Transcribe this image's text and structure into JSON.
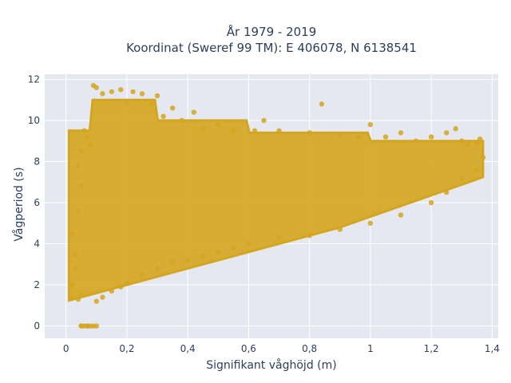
{
  "chart_data": {
    "type": "scatter",
    "title_line1": "År 1979 - 2019",
    "title_line2": "Koordinat (Sweref 99 TM): E 406078, N 6138541",
    "xlabel": "Signifikant våghöjd (m)",
    "ylabel": "Vågperiod (s)",
    "xlim": [
      -0.07,
      1.42
    ],
    "ylim": [
      -0.6,
      12.25
    ],
    "x_ticks": [
      0,
      0.2,
      0.4,
      0.6,
      0.8,
      1.0,
      1.2,
      1.4
    ],
    "x_tick_labels": [
      "0",
      "0,2",
      "0,4",
      "0,6",
      "0,8",
      "1",
      "1,2",
      "1,4"
    ],
    "y_ticks": [
      0,
      2,
      4,
      6,
      8,
      10,
      12
    ],
    "y_tick_labels": [
      "0",
      "2",
      "4",
      "6",
      "8",
      "10",
      "12"
    ],
    "grid": true,
    "marker_color": "#D4A51E",
    "plot_bg": "#E5E8F0",
    "points": [
      [
        0.02,
        1.4
      ],
      [
        0.02,
        2.0
      ],
      [
        0.03,
        3.5
      ],
      [
        0.02,
        4.5
      ],
      [
        0.03,
        2.8
      ],
      [
        0.04,
        1.3
      ],
      [
        0.05,
        1.5
      ],
      [
        0.05,
        0.0
      ],
      [
        0.06,
        0.0
      ],
      [
        0.07,
        0.0
      ],
      [
        0.08,
        0.0
      ],
      [
        0.09,
        0.0
      ],
      [
        0.1,
        0.0
      ],
      [
        0.05,
        0.0
      ],
      [
        0.07,
        0.0
      ],
      [
        0.04,
        5.6
      ],
      [
        0.05,
        6.8
      ],
      [
        0.04,
        7.8
      ],
      [
        0.05,
        8.5
      ],
      [
        0.06,
        9.5
      ],
      [
        0.07,
        9.2
      ],
      [
        0.08,
        8.8
      ],
      [
        0.09,
        11.7
      ],
      [
        0.1,
        11.6
      ],
      [
        0.12,
        11.3
      ],
      [
        0.15,
        11.4
      ],
      [
        0.18,
        11.5
      ],
      [
        0.22,
        11.4
      ],
      [
        0.25,
        11.3
      ],
      [
        0.3,
        11.2
      ],
      [
        0.2,
        10.9
      ],
      [
        0.28,
        10.8
      ],
      [
        0.35,
        10.6
      ],
      [
        0.32,
        10.2
      ],
      [
        0.38,
        10.0
      ],
      [
        0.42,
        10.4
      ],
      [
        0.45,
        9.6
      ],
      [
        0.5,
        9.8
      ],
      [
        0.55,
        9.5
      ],
      [
        0.62,
        9.5
      ],
      [
        0.65,
        10.0
      ],
      [
        0.7,
        9.5
      ],
      [
        0.8,
        9.4
      ],
      [
        0.84,
        10.8
      ],
      [
        0.9,
        9.3
      ],
      [
        0.96,
        9.2
      ],
      [
        1.0,
        9.8
      ],
      [
        1.05,
        9.2
      ],
      [
        1.1,
        9.4
      ],
      [
        1.15,
        9.0
      ],
      [
        1.2,
        9.2
      ],
      [
        1.25,
        9.4
      ],
      [
        1.28,
        9.6
      ],
      [
        1.3,
        9.0
      ],
      [
        1.32,
        8.8
      ],
      [
        1.35,
        8.9
      ],
      [
        1.36,
        9.1
      ],
      [
        0.1,
        1.2
      ],
      [
        0.12,
        1.4
      ],
      [
        0.15,
        1.7
      ],
      [
        0.18,
        1.9
      ],
      [
        0.2,
        2.1
      ],
      [
        0.25,
        2.5
      ],
      [
        0.3,
        2.8
      ],
      [
        0.35,
        3.1
      ],
      [
        0.4,
        3.2
      ],
      [
        0.45,
        3.4
      ],
      [
        0.5,
        3.6
      ],
      [
        0.55,
        3.8
      ],
      [
        0.6,
        4.0
      ],
      [
        0.7,
        4.3
      ],
      [
        0.8,
        4.4
      ],
      [
        0.9,
        4.7
      ],
      [
        1.0,
        5.0
      ],
      [
        1.1,
        5.4
      ],
      [
        1.2,
        6.0
      ],
      [
        1.25,
        6.5
      ],
      [
        1.3,
        7.2
      ],
      [
        1.35,
        7.6
      ],
      [
        1.37,
        8.2
      ]
    ]
  }
}
